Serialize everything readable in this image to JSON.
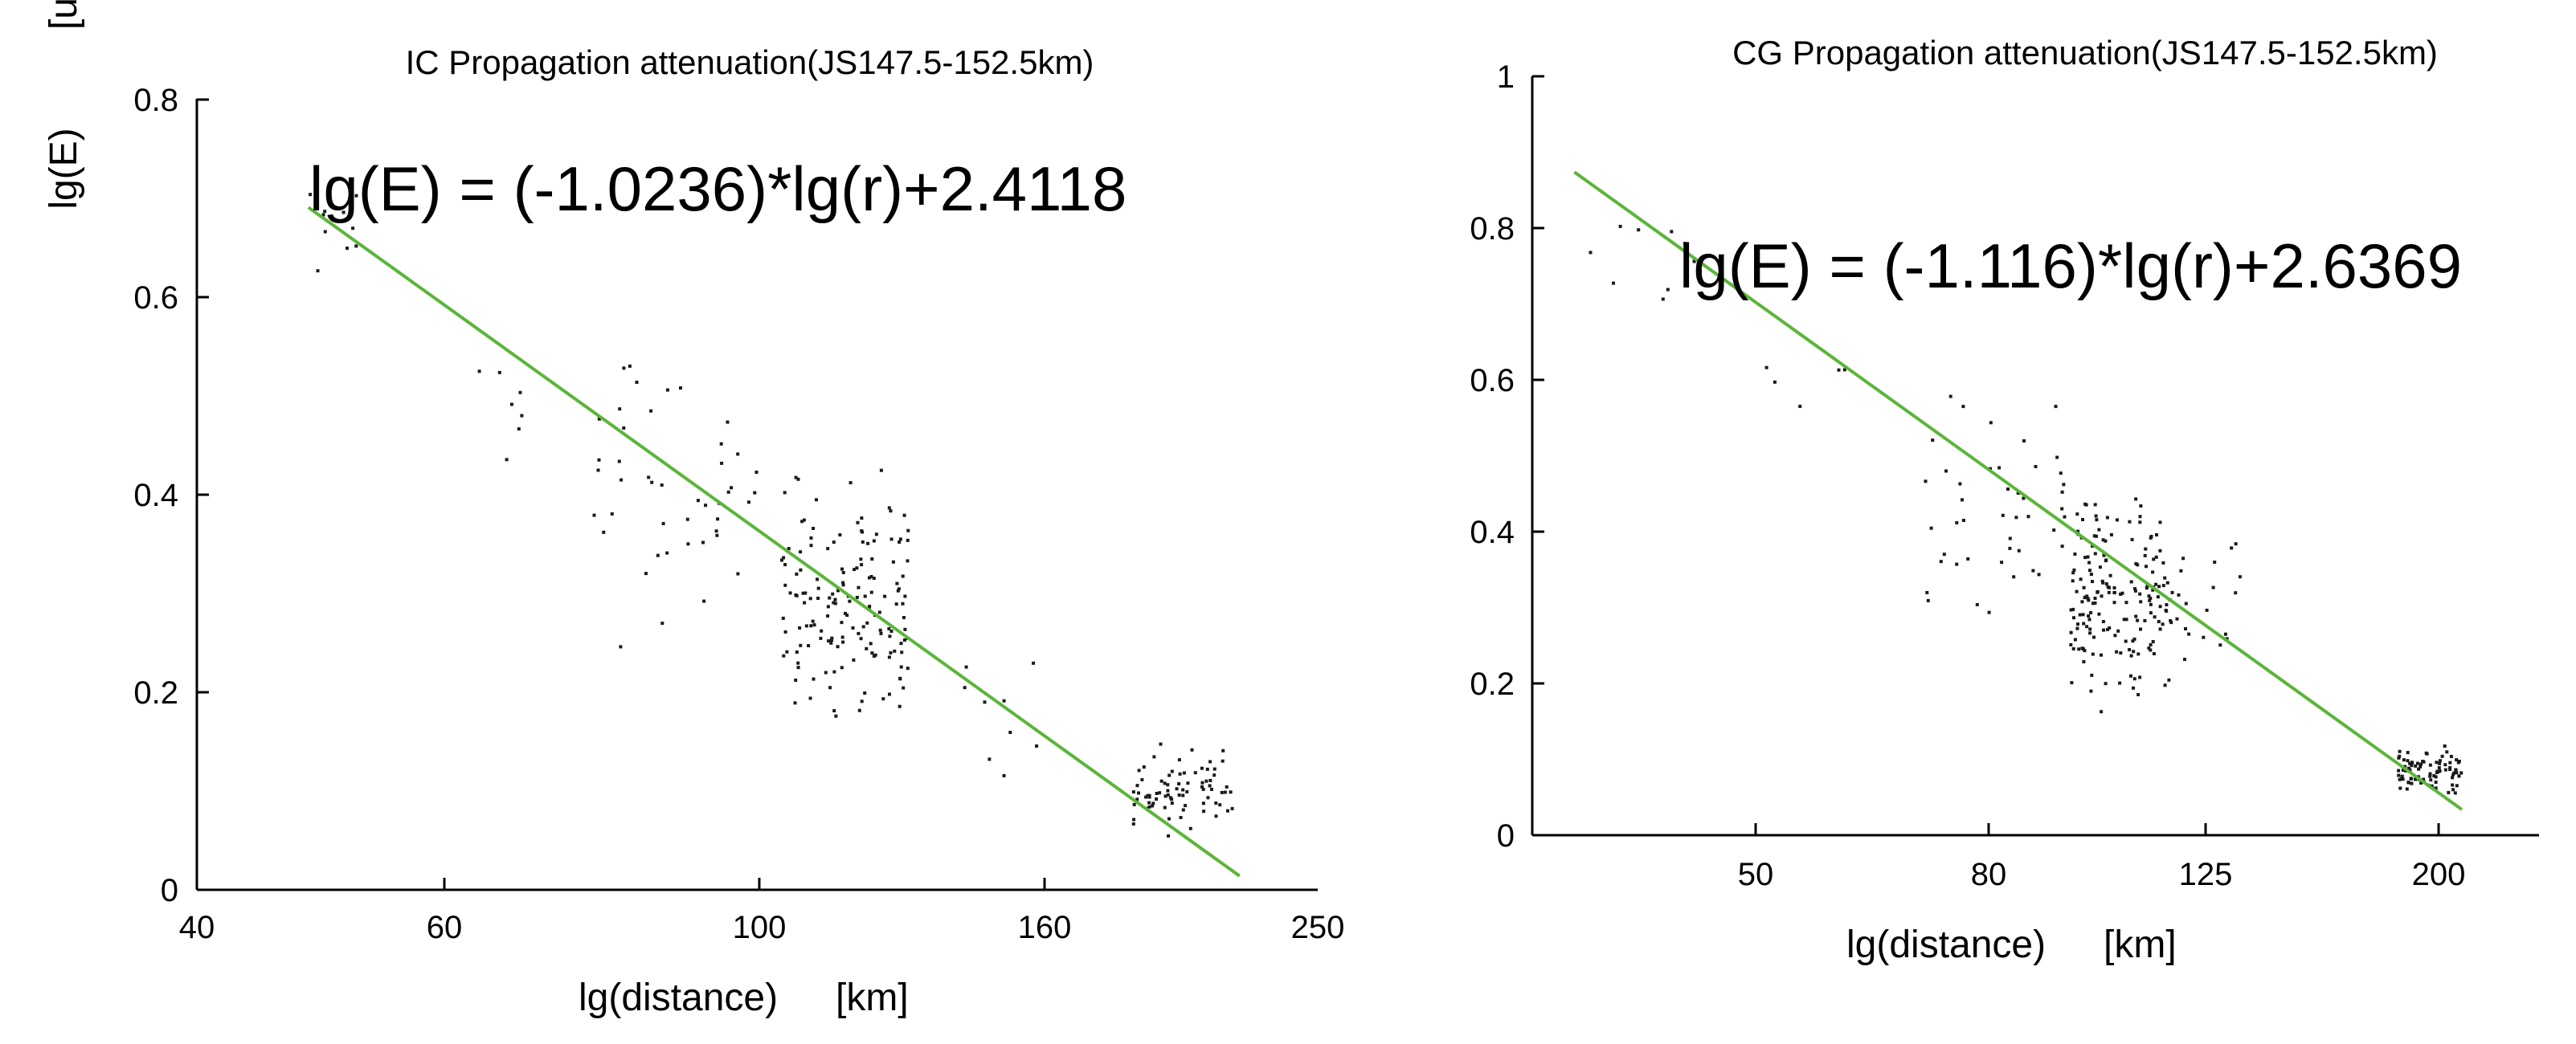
{
  "colors": {
    "fit_line": "#5bb53a",
    "points": "#1a1a1a",
    "axes": "#000000",
    "background": "#ffffff"
  },
  "chart_data": [
    {
      "type": "scatter",
      "title": "IC Propagation attenuation(JS147.5-152.5km)",
      "xlabel": "lg(distance)",
      "xunit": "[km]",
      "ylabel": "lg(E)",
      "yunit": "[unit]",
      "x_scale": "log",
      "xlim": [
        40,
        250
      ],
      "ylim": [
        0,
        0.8
      ],
      "xticks": [
        40,
        60,
        100,
        160,
        250
      ],
      "xtick_labels": [
        "40",
        "60",
        "100",
        "160",
        "250"
      ],
      "yticks": [
        0,
        0.2,
        0.4,
        0.6,
        0.8
      ],
      "ytick_labels": [
        "0",
        "0.2",
        "0.4",
        "0.6",
        "0.8"
      ],
      "equation": "lg(E) = (-1.0236)*lg(r)+2.4118",
      "fit": {
        "slope": -1.0236,
        "intercept": 2.4118,
        "x_range": [
          48,
          220
        ]
      },
      "clusters": [
        {
          "x": [
            47,
            52
          ],
          "y": [
            0.62,
            0.73
          ],
          "n": 10
        },
        {
          "x": [
            62,
            72
          ],
          "y": [
            0.42,
            0.56
          ],
          "n": 7
        },
        {
          "x": [
            76,
            100
          ],
          "y": [
            0.24,
            0.57
          ],
          "n": 45
        },
        {
          "x": [
            104,
            128
          ],
          "y": [
            0.16,
            0.44
          ],
          "n": 160
        },
        {
          "x": [
            140,
            158
          ],
          "y": [
            0.07,
            0.27
          ],
          "n": 9
        },
        {
          "x": [
            185,
            218
          ],
          "y": [
            0.05,
            0.15
          ],
          "n": 80
        }
      ]
    },
    {
      "type": "scatter",
      "title": "CG Propagation attenuation(JS147.5-152.5km)",
      "xlabel": "lg(distance)",
      "xunit": "[km]",
      "ylabel": "",
      "x_scale": "log",
      "xlim": [
        35,
        250
      ],
      "ylim": [
        0,
        1
      ],
      "xticks": [
        50,
        80,
        125,
        200
      ],
      "xtick_labels": [
        "50",
        "80",
        "125",
        "200"
      ],
      "yticks": [
        0,
        0.2,
        0.4,
        0.6,
        0.8,
        1
      ],
      "ytick_labels": [
        "0",
        "0.2",
        "0.4",
        "0.6",
        "0.8",
        "1"
      ],
      "equation": "lg(E) = (-1.116)*lg(r)+2.6369",
      "fit": {
        "slope": -1.116,
        "intercept": 2.6369,
        "x_range": [
          38,
          215
        ]
      },
      "clusters": [
        {
          "x": [
            38,
            50
          ],
          "y": [
            0.66,
            0.82
          ],
          "n": 10
        },
        {
          "x": [
            55,
            66
          ],
          "y": [
            0.53,
            0.67
          ],
          "n": 5
        },
        {
          "x": [
            75,
            100
          ],
          "y": [
            0.26,
            0.6
          ],
          "n": 45
        },
        {
          "x": [
            100,
            122
          ],
          "y": [
            0.16,
            0.46
          ],
          "n": 180
        },
        {
          "x": [
            122,
            142
          ],
          "y": [
            0.23,
            0.4
          ],
          "n": 20
        },
        {
          "x": [
            190,
            215
          ],
          "y": [
            0.05,
            0.12
          ],
          "n": 90
        }
      ]
    }
  ]
}
